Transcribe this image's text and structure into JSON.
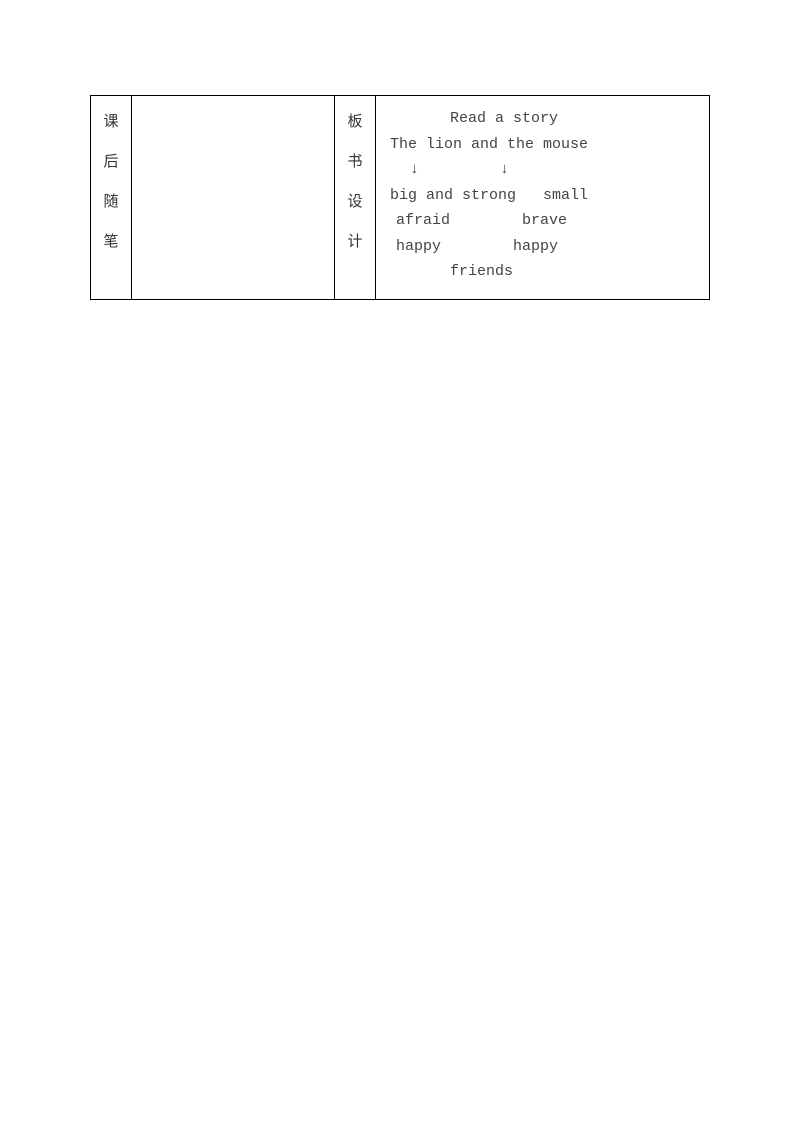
{
  "left_header": {
    "c1": "课",
    "c2": "后",
    "c3": "随",
    "c4": "笔"
  },
  "right_header": {
    "c1": "板",
    "c2": "书",
    "c3": "设",
    "c4": "计"
  },
  "board": {
    "title": "Read a story",
    "subtitle": "The lion and the mouse",
    "arrow_left": "↓",
    "arrow_right": "↓",
    "row1_left": "big and strong",
    "row1_right": "small",
    "row2_left": "afraid",
    "row2_right": "brave",
    "row3_left": "happy",
    "row3_right": "happy",
    "row4": "friends"
  }
}
